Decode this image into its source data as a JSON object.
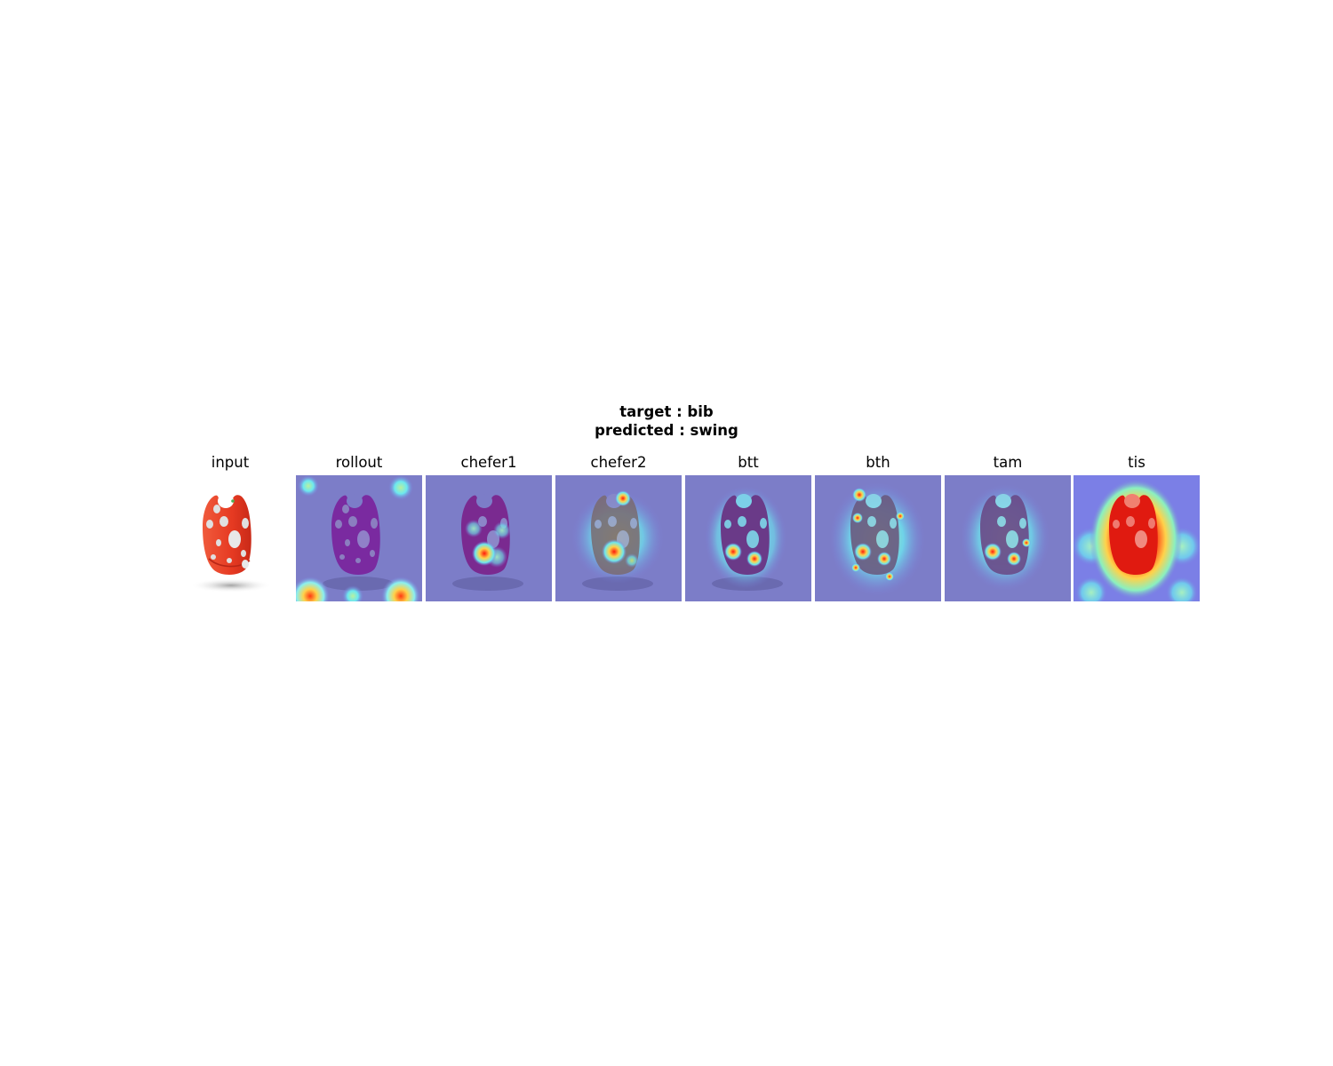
{
  "figure": {
    "target_line": "target : bib",
    "predicted_line": "predicted : swing"
  },
  "panels": [
    {
      "title": "input",
      "kind": "input"
    },
    {
      "title": "rollout",
      "kind": "rollout"
    },
    {
      "title": "chefer1",
      "kind": "chefer1"
    },
    {
      "title": "chefer2",
      "kind": "chefer2"
    },
    {
      "title": "btt",
      "kind": "btt"
    },
    {
      "title": "bth",
      "kind": "bth"
    },
    {
      "title": "tam",
      "kind": "tam"
    },
    {
      "title": "tis",
      "kind": "tis"
    }
  ],
  "colors": {
    "background": "#ffffff",
    "bib_red": "#e63a22",
    "heatmap_low": "#7a7de0",
    "heatmap_mid": "#6ce8f0",
    "heatmap_high": "#ff2a10"
  }
}
